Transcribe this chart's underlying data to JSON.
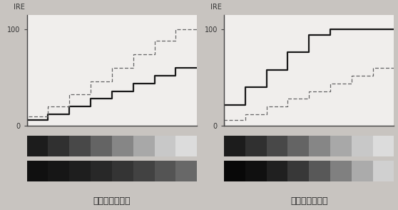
{
  "bg_color": "#c8c4c0",
  "panel_bg": "#f0eeec",
  "title_left": "对比度调节过低",
  "title_right": "对比度调节过高",
  "ire_label": "IRE",
  "ire_100": "100",
  "ire_0": "0",
  "num_steps": 8,
  "left_solid_steps": [
    6,
    12,
    20,
    28,
    36,
    44,
    52,
    60
  ],
  "left_dashed_steps": [
    10,
    20,
    33,
    46,
    60,
    74,
    88,
    100
  ],
  "right_solid_steps": [
    22,
    40,
    58,
    76,
    94,
    100,
    100,
    100
  ],
  "right_dashed_steps": [
    6,
    12,
    20,
    28,
    36,
    44,
    52,
    60
  ],
  "gray_bar1_left": [
    "#1c1c1c",
    "#303030",
    "#484848",
    "#646464",
    "#868686",
    "#a8a8a8",
    "#c8c8c8",
    "#dcdcdc"
  ],
  "gray_bar2_left": [
    "#101010",
    "#161616",
    "#1e1e1e",
    "#282828",
    "#343434",
    "#424242",
    "#545454",
    "#686868"
  ],
  "gray_bar1_right": [
    "#1c1c1c",
    "#303030",
    "#484848",
    "#646464",
    "#868686",
    "#a8a8a8",
    "#c8c8c8",
    "#dcdcdc"
  ],
  "gray_bar2_right": [
    "#080808",
    "#101010",
    "#202020",
    "#383838",
    "#585858",
    "#808080",
    "#ababab",
    "#d0d0d0"
  ]
}
